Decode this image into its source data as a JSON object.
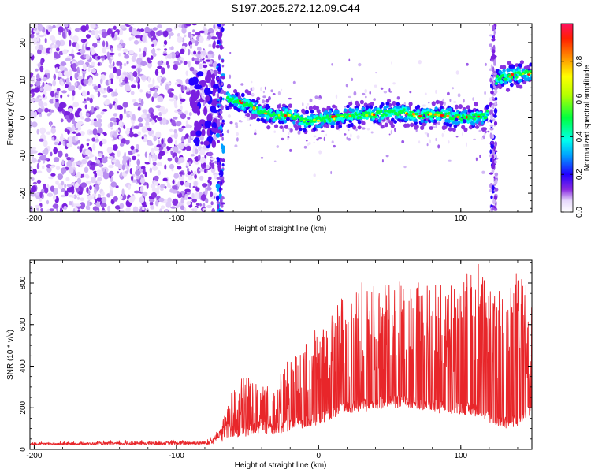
{
  "title": "S197.2025.272.12.09.C44",
  "colors": {
    "line": "#e8262a",
    "axis": "#000000"
  },
  "chart_data": [
    {
      "type": "heatmap",
      "name": "spectrogram",
      "xlabel": "Height of straight line (km)",
      "ylabel": "Frequency (Hz)",
      "xlim": [
        -203,
        150
      ],
      "ylim": [
        -25,
        25
      ],
      "xticks": [
        -200,
        -100,
        0,
        100
      ],
      "yticks": [
        -20,
        -10,
        0,
        10,
        20
      ],
      "colorbar": {
        "label": "Normalized spectral amplitude",
        "range": [
          0.0,
          1.0
        ],
        "ticks": [
          "0.0",
          "0.2",
          "0.4",
          "0.6",
          "0.8"
        ],
        "tick_values": [
          0.0,
          0.2,
          0.4,
          0.6,
          0.8
        ]
      },
      "ridge": [
        {
          "x": -64,
          "f": 5
        },
        {
          "x": -50,
          "f": 3.5
        },
        {
          "x": -40,
          "f": 1.5
        },
        {
          "x": -30,
          "f": 0.5
        },
        {
          "x": -20,
          "f": 1
        },
        {
          "x": -10,
          "f": -1
        },
        {
          "x": 0,
          "f": -0.5
        },
        {
          "x": 10,
          "f": 0
        },
        {
          "x": 20,
          "f": 0.5
        },
        {
          "x": 40,
          "f": 1
        },
        {
          "x": 60,
          "f": 1.5
        },
        {
          "x": 70,
          "f": 0.5
        },
        {
          "x": 85,
          "f": 1
        },
        {
          "x": 100,
          "f": 0
        },
        {
          "x": 118,
          "f": 0.5
        },
        {
          "x": 126,
          "f": 10.5
        },
        {
          "x": 150,
          "f": 12
        }
      ]
    },
    {
      "type": "line",
      "name": "snr",
      "xlabel": "Height of straight line (km)",
      "ylabel": "SNR (10 * v/v)",
      "xlim": [
        -203,
        150
      ],
      "ylim": [
        0,
        910
      ],
      "xticks": [
        -200,
        -100,
        0,
        100
      ],
      "yticks": [
        0,
        200,
        400,
        600,
        800
      ],
      "envelope": [
        {
          "x": -203,
          "base": 20,
          "peak": 30
        },
        {
          "x": -80,
          "base": 22,
          "peak": 40
        },
        {
          "x": -70,
          "base": 30,
          "peak": 80
        },
        {
          "x": -60,
          "base": 60,
          "peak": 290
        },
        {
          "x": -50,
          "base": 60,
          "peak": 360
        },
        {
          "x": -40,
          "base": 80,
          "peak": 300
        },
        {
          "x": -30,
          "base": 70,
          "peak": 300
        },
        {
          "x": -20,
          "base": 90,
          "peak": 440
        },
        {
          "x": -10,
          "base": 100,
          "peak": 520
        },
        {
          "x": 0,
          "base": 120,
          "peak": 560
        },
        {
          "x": 10,
          "base": 150,
          "peak": 700
        },
        {
          "x": 20,
          "base": 170,
          "peak": 720
        },
        {
          "x": 30,
          "base": 180,
          "peak": 780
        },
        {
          "x": 40,
          "base": 190,
          "peak": 760
        },
        {
          "x": 50,
          "base": 200,
          "peak": 790
        },
        {
          "x": 60,
          "base": 200,
          "peak": 780
        },
        {
          "x": 70,
          "base": 190,
          "peak": 810
        },
        {
          "x": 80,
          "base": 180,
          "peak": 790
        },
        {
          "x": 90,
          "base": 170,
          "peak": 760
        },
        {
          "x": 100,
          "base": 170,
          "peak": 760
        },
        {
          "x": 110,
          "base": 160,
          "peak": 900
        },
        {
          "x": 120,
          "base": 130,
          "peak": 760
        },
        {
          "x": 130,
          "base": 100,
          "peak": 720
        },
        {
          "x": 140,
          "base": 110,
          "peak": 850
        },
        {
          "x": 150,
          "base": 160,
          "peak": 700
        }
      ]
    }
  ]
}
